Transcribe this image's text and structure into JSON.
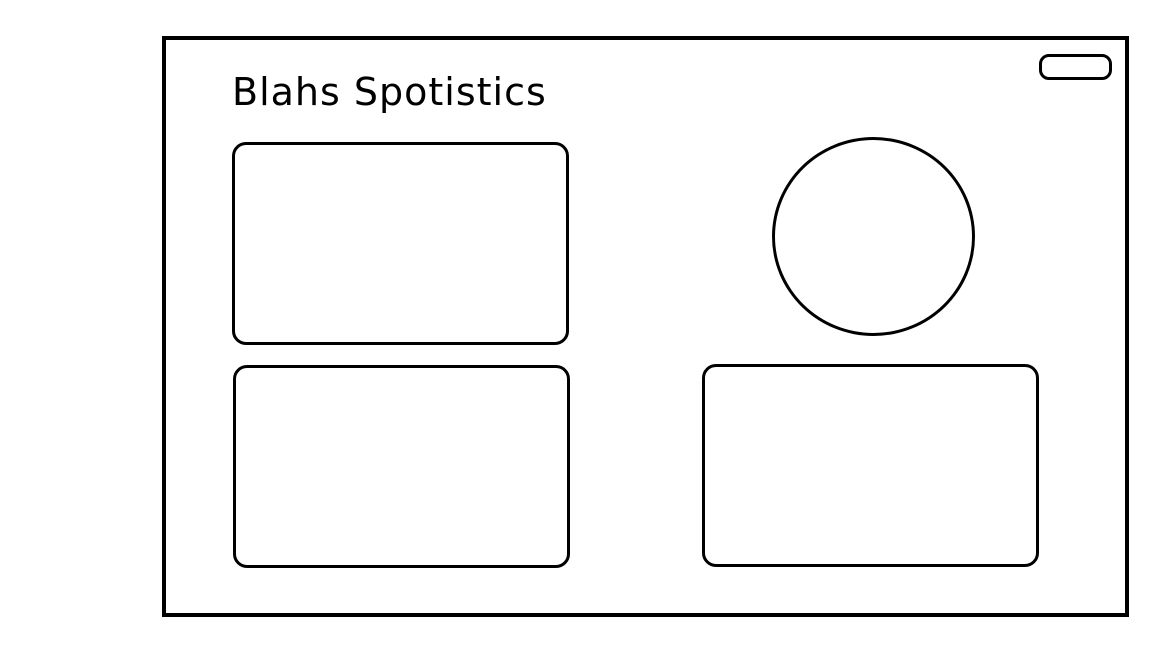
{
  "header": {
    "title": "Blahs Spotistics"
  }
}
